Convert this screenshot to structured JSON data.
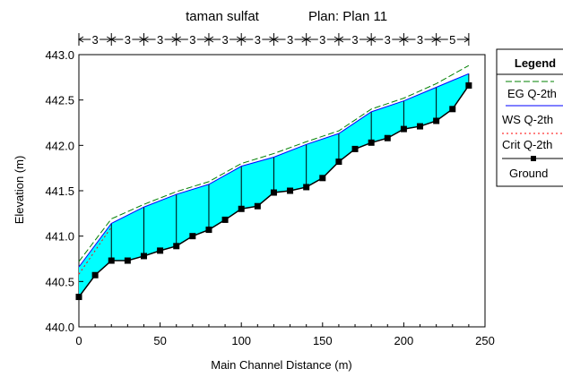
{
  "title_left": "taman sulfat",
  "title_right": "Plan: Plan 11",
  "reach_labels": [
    "3",
    "3",
    "3",
    "3",
    "3",
    "3",
    "3",
    "3",
    "3",
    "3",
    "3",
    "5"
  ],
  "chart_data": {
    "type": "area",
    "xlabel": "Main Channel Distance (m)",
    "ylabel": "Elevation (m)",
    "xlim": [
      0,
      250
    ],
    "ylim": [
      440.0,
      443.0
    ],
    "xticks": [
      "0",
      "50",
      "100",
      "150",
      "200",
      "250"
    ],
    "yticks": [
      "440.0",
      "440.5",
      "441.0",
      "441.5",
      "442.0",
      "442.5",
      "443.0"
    ],
    "grid": false,
    "legend_position": "right",
    "legend": {
      "title": "Legend",
      "entries": [
        {
          "label": "EG  Q-2th",
          "color": "#008000",
          "style": "dashed"
        },
        {
          "label": "WS  Q-2th",
          "color": "#0000ff",
          "style": "solid"
        },
        {
          "label": "Crit  Q-2th",
          "color": "#ff0000",
          "style": "dotted"
        },
        {
          "label": "Ground",
          "color": "#000000",
          "style": "solid-square"
        }
      ]
    },
    "water_fill_color": "#00ffff",
    "series": [
      {
        "name": "EG  Q-2th",
        "color": "#008000",
        "x": [
          0,
          20,
          40,
          60,
          80,
          100,
          120,
          140,
          160,
          180,
          200,
          220,
          240
        ],
        "y": [
          440.72,
          441.19,
          441.35,
          441.49,
          441.6,
          441.8,
          441.91,
          442.04,
          442.16,
          442.4,
          442.52,
          442.68,
          442.88
        ]
      },
      {
        "name": "WS  Q-2th",
        "color": "#0000ff",
        "x": [
          0,
          20,
          40,
          60,
          80,
          100,
          120,
          140,
          160,
          180,
          200,
          220,
          240
        ],
        "y": [
          440.66,
          441.14,
          441.32,
          441.46,
          441.57,
          441.77,
          441.87,
          442.01,
          442.13,
          442.37,
          442.49,
          442.64,
          442.79
        ]
      },
      {
        "name": "Crit  Q-2th",
        "color": "#ff0000",
        "x": [
          0,
          10,
          20
        ],
        "y": [
          440.58,
          440.84,
          441.1
        ]
      },
      {
        "name": "Ground",
        "color": "#000000",
        "x": [
          0,
          10,
          20,
          30,
          40,
          50,
          60,
          70,
          80,
          90,
          100,
          110,
          120,
          130,
          140,
          150,
          160,
          170,
          180,
          190,
          200,
          210,
          220,
          230,
          240
        ],
        "y": [
          440.33,
          440.57,
          440.73,
          440.73,
          440.78,
          440.84,
          440.89,
          441.0,
          441.07,
          441.18,
          441.3,
          441.33,
          441.48,
          441.5,
          441.54,
          441.64,
          441.82,
          441.96,
          442.03,
          442.08,
          442.18,
          442.21,
          442.27,
          442.4,
          442.66
        ]
      }
    ]
  }
}
